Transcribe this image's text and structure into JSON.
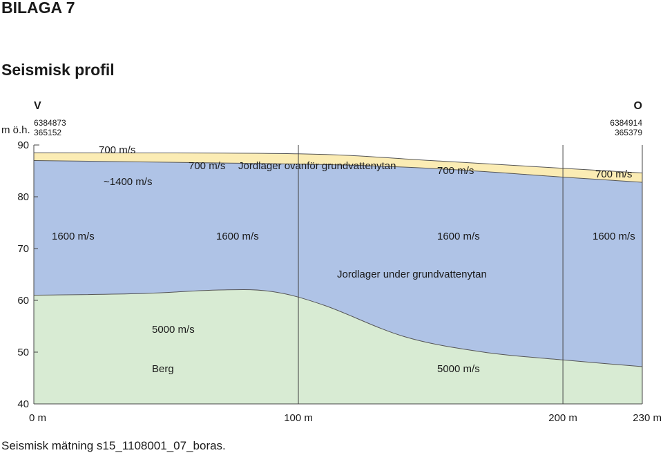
{
  "title": "BILAGA 7",
  "subtitle": "Seismisk profil",
  "footer": "Seismisk mätning s15_1108001_07_boras.",
  "profile": {
    "ylabel": "m ö.h.",
    "west": {
      "label": "V",
      "coord_n": "6384873",
      "coord_e": "365152"
    },
    "east": {
      "label": "O",
      "coord_n": "6384914",
      "coord_e": "365379"
    },
    "y_ticks": [
      "90",
      "80",
      "70",
      "60",
      "50",
      "40"
    ],
    "x_ticks": [
      "0 m",
      "100 m",
      "200 m",
      "230 m"
    ],
    "velocity_labels": {
      "top_left": "700 m/s",
      "approx_1400": "~1400 m/s",
      "layer_mid_left": "700 m/s",
      "layer_mid_right": "700 m/s",
      "layer_right": "700 m/s",
      "lower_1": "1600 m/s",
      "lower_2": "1600 m/s",
      "lower_3": "1600 m/s",
      "lower_4": "1600 m/s",
      "rock_left": "5000 m/s",
      "rock_right": "5000 m/s"
    },
    "layer_labels": {
      "upper": "Jordlager ovanför grundvattenytan",
      "lower": "Jordlager under grundvattenytan",
      "rock": "Berg"
    },
    "colors": {
      "unsaturated": "#fbecb4",
      "saturated": "#afc3e6",
      "rock": "#d8ebd3",
      "grid": "#444444",
      "boundary": "#555555"
    }
  },
  "chart_data": {
    "type": "area",
    "title": "Seismisk profil",
    "xlabel": "",
    "ylabel": "m ö.h.",
    "xlim": [
      0,
      230
    ],
    "ylim": [
      40,
      90
    ],
    "x_ticks": [
      0,
      100,
      200,
      230
    ],
    "y_ticks": [
      40,
      50,
      60,
      70,
      80,
      90
    ],
    "series": [
      {
        "name": "Jordlager ovanför grundvattenytan",
        "velocity": "700 m/s",
        "top": [
          [
            0,
            88.5
          ],
          [
            100,
            88.3
          ],
          [
            150,
            87.0
          ],
          [
            200,
            85.5
          ],
          [
            230,
            84.6
          ]
        ],
        "bottom": [
          [
            0,
            87.0
          ],
          [
            60,
            86.6
          ],
          [
            120,
            86.1
          ],
          [
            160,
            85.2
          ],
          [
            200,
            83.8
          ],
          [
            230,
            82.8
          ]
        ]
      },
      {
        "name": "Jordlager under grundvattenytan",
        "velocity": "1600 m/s",
        "top": [
          [
            0,
            87.0
          ],
          [
            60,
            86.6
          ],
          [
            120,
            86.1
          ],
          [
            160,
            85.2
          ],
          [
            200,
            83.8
          ],
          [
            230,
            82.8
          ]
        ],
        "bottom": [
          [
            0,
            61.0
          ],
          [
            40,
            61.3
          ],
          [
            70,
            62.0
          ],
          [
            90,
            61.7
          ],
          [
            110,
            59.0
          ],
          [
            140,
            53.0
          ],
          [
            170,
            50.0
          ],
          [
            200,
            48.5
          ],
          [
            230,
            47.2
          ]
        ]
      },
      {
        "name": "Berg",
        "velocity": "5000 m/s",
        "top": [
          [
            0,
            61.0
          ],
          [
            40,
            61.3
          ],
          [
            70,
            62.0
          ],
          [
            90,
            61.7
          ],
          [
            110,
            59.0
          ],
          [
            140,
            53.0
          ],
          [
            170,
            50.0
          ],
          [
            200,
            48.5
          ],
          [
            230,
            47.2
          ]
        ],
        "bottom": [
          [
            0,
            40
          ],
          [
            230,
            40
          ]
        ]
      }
    ]
  }
}
